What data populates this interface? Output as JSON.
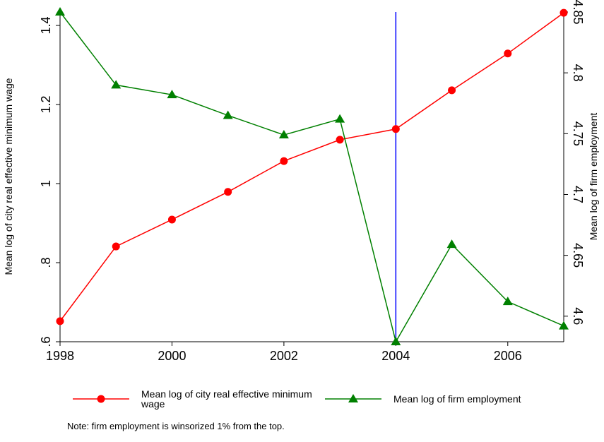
{
  "chart_data": {
    "type": "line",
    "x": [
      1998,
      1999,
      2000,
      2001,
      2002,
      2003,
      2004,
      2005,
      2006,
      2007
    ],
    "xlim": [
      1998,
      2007
    ],
    "xticks": [
      1998,
      2000,
      2002,
      2004,
      2006
    ],
    "ylim": [
      0.6,
      1.434
    ],
    "yticks": [
      {
        "value": 0.6,
        "label": ".6"
      },
      {
        "value": 0.8,
        "label": ".8"
      },
      1,
      1.2,
      1.4
    ],
    "y2lim": [
      4.579,
      4.85
    ],
    "y2ticks": [
      4.6,
      4.65,
      4.7,
      4.75,
      4.8,
      4.85
    ],
    "ylabel": "Mean log of city real effective minimum wage",
    "y2label": "Mean log of firm employment",
    "vline": 2004,
    "vline_color": "#0000ff",
    "grid": false,
    "legend": "bottom",
    "series": [
      {
        "name": "Mean log of city real effective minimum wage",
        "color": "#ff0000",
        "marker": "circle",
        "values": [
          0.652,
          0.841,
          0.909,
          0.979,
          1.057,
          1.111,
          1.138,
          1.236,
          1.329,
          1.432
        ]
      },
      {
        "name": "Mean log of firm employment",
        "color": "#008000",
        "marker": "triangle",
        "axis": "y2",
        "values": [
          4.85,
          4.79,
          4.782,
          4.765,
          4.749,
          4.762,
          4.579,
          4.659,
          4.612,
          4.592
        ]
      }
    ],
    "note": "Note: firm employment is winsorized 1% from the top."
  }
}
